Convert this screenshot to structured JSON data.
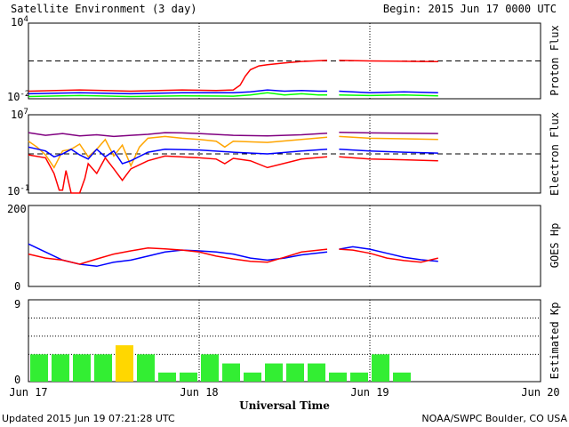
{
  "header": {
    "title": "Satellite Environment (3 day)",
    "begin": "Begin:  2015 Jun 17 0000 UTC"
  },
  "footer": {
    "updated": "Updated 2015 Jun 19 07:21:28 UTC",
    "credit": "NOAA/SWPC Boulder, CO USA"
  },
  "x_axis": {
    "label": "Universal Time",
    "ticks": [
      "Jun 17",
      "Jun 18",
      "Jun 19",
      "Jun 20"
    ],
    "range_days": [
      0,
      3
    ]
  },
  "colors": {
    "red": "#ff0000",
    "blue": "#0000ff",
    "green": "#00ff00",
    "orange": "#ffa500",
    "purple": "#800080",
    "kp_green": "#33ee33",
    "kp_yellow": "#ffd700"
  },
  "chart_data": [
    {
      "type": "line",
      "ylabel": "Proton Flux",
      "yscale": "log",
      "ylim": [
        0.01,
        10000
      ],
      "ytick_labels": [
        {
          "base": "10",
          "exp": "4"
        },
        {
          "base": "10",
          "exp": "-2"
        }
      ],
      "threshold": 10,
      "series": [
        {
          "color": "#ff0000",
          "x": [
            0,
            0.3,
            0.6,
            0.9,
            1.1,
            1.2,
            1.24,
            1.27,
            1.3,
            1.35,
            1.4,
            1.5,
            1.6,
            1.7,
            1.75,
            1.78,
            1.82,
            2.0,
            2.15,
            2.3,
            2.4
          ],
          "y": [
            0.04,
            0.05,
            0.04,
            0.05,
            0.045,
            0.05,
            0.12,
            0.6,
            2,
            4,
            5,
            7,
            9,
            10.5,
            11,
            null,
            11,
            10,
            9.5,
            9,
            8.8
          ]
        },
        {
          "color": "#0000ff",
          "x": [
            0,
            0.3,
            0.6,
            0.9,
            1.2,
            1.3,
            1.4,
            1.5,
            1.6,
            1.7,
            1.75,
            1.78,
            1.82,
            2.0,
            2.2,
            2.4
          ],
          "y": [
            0.025,
            0.03,
            0.025,
            0.03,
            0.03,
            0.035,
            0.05,
            0.04,
            0.045,
            0.04,
            0.04,
            null,
            0.04,
            0.03,
            0.035,
            0.03
          ]
        },
        {
          "color": "#00ff00",
          "x": [
            0,
            0.3,
            0.6,
            0.9,
            1.2,
            1.3,
            1.4,
            1.5,
            1.6,
            1.7,
            1.75,
            1.78,
            1.82,
            2.0,
            2.2,
            2.4
          ],
          "y": [
            0.015,
            0.018,
            0.015,
            0.017,
            0.016,
            0.02,
            0.03,
            0.02,
            0.025,
            0.02,
            0.02,
            null,
            0.02,
            0.018,
            0.02,
            0.017
          ]
        }
      ]
    },
    {
      "type": "line",
      "ylabel": "Electron Flux",
      "yscale": "log",
      "ylim": [
        0.1,
        10000000
      ],
      "ytick_labels": [
        {
          "base": "10",
          "exp": "7"
        },
        {
          "base": "10",
          "exp": "-1"
        }
      ],
      "threshold": 1000,
      "series": [
        {
          "color": "#800080",
          "x": [
            0,
            0.1,
            0.2,
            0.3,
            0.4,
            0.5,
            0.6,
            0.7,
            0.8,
            0.9,
            1.0,
            1.2,
            1.4,
            1.6,
            1.75,
            1.78,
            1.82,
            2.0,
            2.2,
            2.4
          ],
          "y": [
            150000,
            80000,
            120000,
            70000,
            90000,
            60000,
            80000,
            100000,
            150000,
            140000,
            120000,
            80000,
            70000,
            90000,
            130000,
            null,
            160000,
            140000,
            130000,
            120000
          ]
        },
        {
          "color": "#ffa500",
          "x": [
            0,
            0.05,
            0.1,
            0.15,
            0.2,
            0.25,
            0.3,
            0.35,
            0.4,
            0.45,
            0.5,
            0.55,
            0.6,
            0.65,
            0.7,
            0.8,
            0.9,
            1.0,
            1.1,
            1.15,
            1.2,
            1.4,
            1.6,
            1.75,
            1.78,
            1.82,
            2.0,
            2.2,
            2.4
          ],
          "y": [
            20000,
            5000,
            800,
            40,
            2000,
            3000,
            10000,
            500,
            3000,
            30000,
            600,
            8000,
            60,
            5000,
            40000,
            60000,
            40000,
            30000,
            20000,
            5000,
            20000,
            15000,
            30000,
            50000,
            null,
            60000,
            40000,
            35000,
            30000
          ]
        },
        {
          "color": "#0000ff",
          "x": [
            0,
            0.1,
            0.15,
            0.2,
            0.25,
            0.3,
            0.35,
            0.4,
            0.45,
            0.5,
            0.55,
            0.6,
            0.7,
            0.8,
            1.0,
            1.2,
            1.4,
            1.6,
            1.75,
            1.78,
            1.82,
            2.0,
            2.2,
            2.4
          ],
          "y": [
            5000,
            2000,
            500,
            1000,
            3000,
            800,
            300,
            3000,
            500,
            2000,
            100,
            200,
            1500,
            3000,
            2500,
            1500,
            1000,
            2000,
            3000,
            null,
            3000,
            2000,
            1500,
            1200
          ]
        },
        {
          "color": "#ff0000",
          "x": [
            0,
            0.1,
            0.15,
            0.18,
            0.2,
            0.22,
            0.25,
            0.3,
            0.33,
            0.35,
            0.4,
            0.45,
            0.5,
            0.55,
            0.6,
            0.7,
            0.8,
            1.0,
            1.1,
            1.15,
            1.2,
            1.3,
            1.4,
            1.6,
            1.75,
            1.78,
            1.82,
            2.0,
            2.2,
            2.4
          ],
          "y": [
            800,
            400,
            10,
            0.2,
            0.2,
            20,
            0.1,
            0.1,
            3,
            100,
            10,
            400,
            30,
            2,
            30,
            200,
            600,
            400,
            300,
            100,
            350,
            200,
            40,
            300,
            500,
            null,
            500,
            300,
            250,
            200
          ]
        }
      ]
    },
    {
      "type": "line",
      "ylabel": "GOES Hp",
      "ylim": [
        0,
        200
      ],
      "ytick_labels": [
        "200",
        "0"
      ],
      "series": [
        {
          "color": "#0000ff",
          "x": [
            0,
            0.1,
            0.2,
            0.3,
            0.4,
            0.5,
            0.6,
            0.7,
            0.8,
            0.9,
            1.0,
            1.1,
            1.2,
            1.3,
            1.4,
            1.5,
            1.6,
            1.75,
            1.78,
            1.82,
            1.9,
            2.0,
            2.1,
            2.2,
            2.3,
            2.4
          ],
          "y": [
            105,
            85,
            65,
            55,
            50,
            60,
            65,
            75,
            85,
            90,
            88,
            85,
            80,
            70,
            65,
            70,
            78,
            85,
            null,
            92,
            98,
            92,
            82,
            72,
            66,
            62
          ]
        },
        {
          "color": "#ff0000",
          "x": [
            0,
            0.1,
            0.2,
            0.3,
            0.4,
            0.5,
            0.6,
            0.7,
            0.8,
            0.9,
            1.0,
            1.1,
            1.2,
            1.3,
            1.4,
            1.5,
            1.6,
            1.75,
            1.78,
            1.82,
            1.9,
            2.0,
            2.1,
            2.2,
            2.3,
            2.4
          ],
          "y": [
            80,
            70,
            65,
            55,
            68,
            80,
            88,
            95,
            93,
            90,
            85,
            75,
            68,
            62,
            60,
            72,
            85,
            92,
            null,
            92,
            90,
            82,
            70,
            64,
            60,
            70
          ]
        }
      ]
    },
    {
      "type": "bar",
      "ylabel": "Estimated Kp",
      "ylim": [
        0,
        9
      ],
      "ytick_labels": [
        "9",
        "0"
      ],
      "bar_width_hours": 3,
      "values": [
        3,
        3,
        3,
        3,
        4,
        3,
        1,
        1,
        3,
        2,
        1,
        2,
        2,
        2,
        1,
        1,
        3,
        1
      ],
      "bar_colors": [
        "#33ee33",
        "#33ee33",
        "#33ee33",
        "#33ee33",
        "#ffd700",
        "#33ee33",
        "#33ee33",
        "#33ee33",
        "#33ee33",
        "#33ee33",
        "#33ee33",
        "#33ee33",
        "#33ee33",
        "#33ee33",
        "#33ee33",
        "#33ee33",
        "#33ee33",
        "#33ee33"
      ]
    }
  ]
}
